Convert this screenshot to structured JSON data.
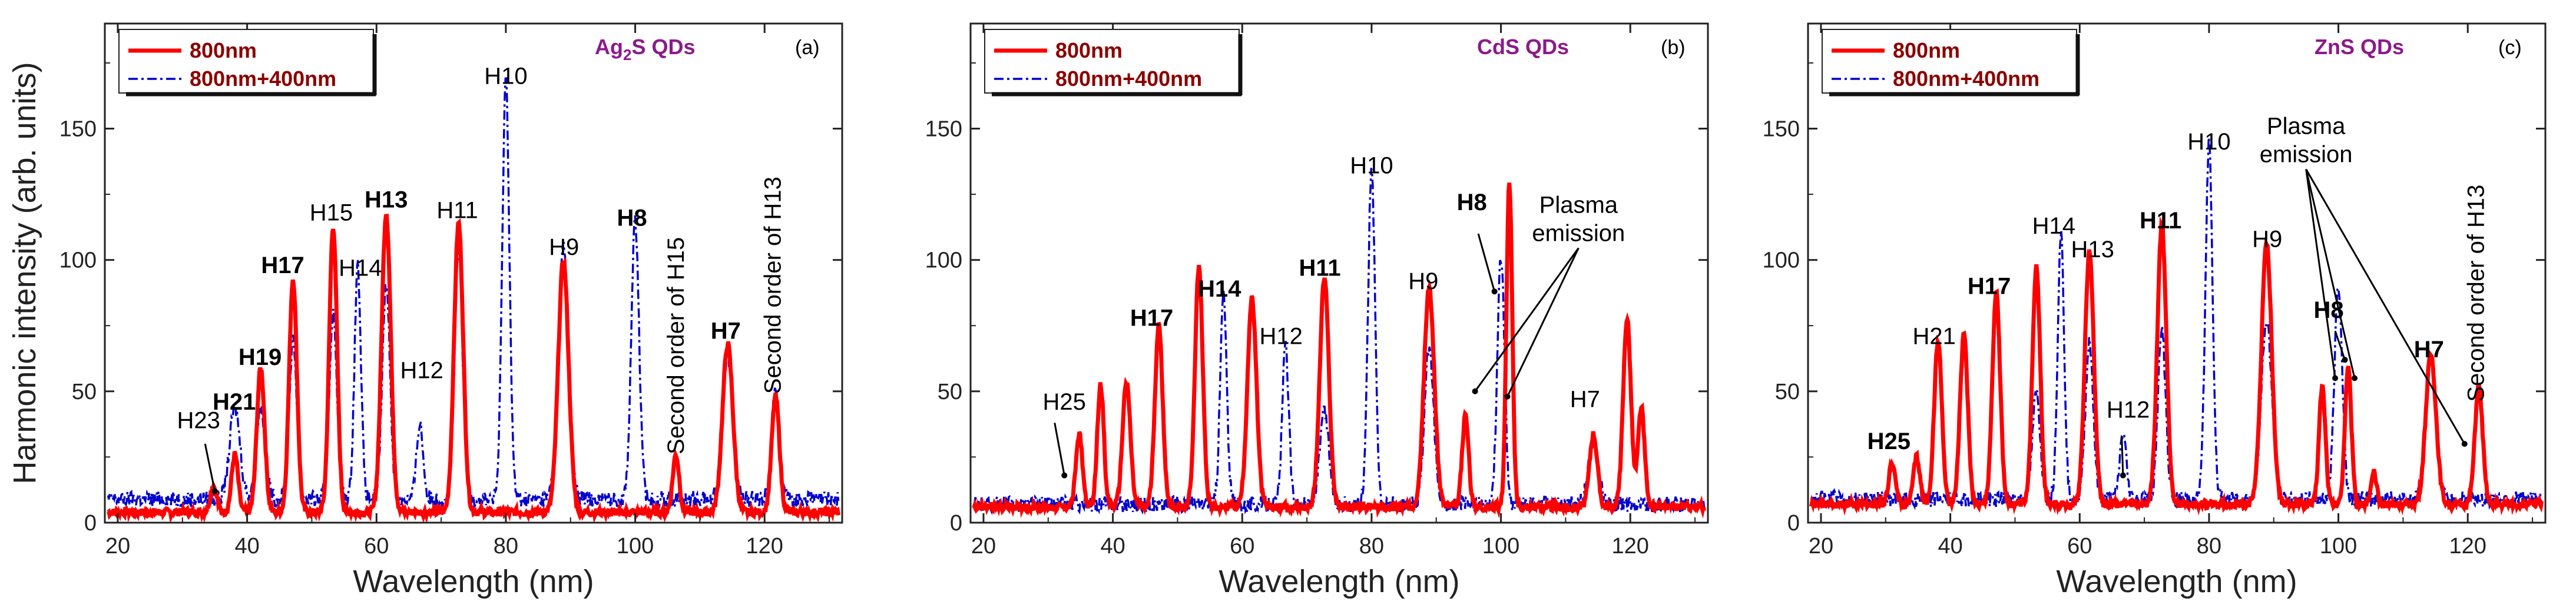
{
  "chart_data": [
    {
      "type": "line",
      "panel_tag": "(a)",
      "title": "Ag2S QDs",
      "title_main": "Ag",
      "title_sub": "2",
      "title_rest": "S QDs",
      "xlabel": "Wavelength (nm)",
      "ylabel": "Harmonic intensity (arb. units)",
      "xlim": [
        18,
        132
      ],
      "ylim": [
        0,
        190
      ],
      "xticks": [
        20,
        40,
        60,
        80,
        100,
        120
      ],
      "yticks": [
        0,
        50,
        100,
        150
      ],
      "legend": [
        "800nm",
        "800nm+400nm"
      ],
      "series": [
        {
          "name": "800nm",
          "color": "#ff0000",
          "baseline": 4,
          "peaks": [
            [
              34.8,
              10,
              0.5
            ],
            [
              38.1,
              22,
              0.5
            ],
            [
              42.1,
              55,
              0.6
            ],
            [
              47.1,
              89,
              0.6
            ],
            [
              53.3,
              109,
              0.6
            ],
            [
              61.5,
              114,
              0.7
            ],
            [
              72.7,
              110,
              0.7
            ],
            [
              88.9,
              96,
              0.8
            ],
            [
              106.3,
              22,
              0.5
            ],
            [
              114.3,
              64,
              0.8
            ],
            [
              121.7,
              44,
              0.6
            ]
          ]
        },
        {
          "name": "800nm+400nm",
          "color": "#0000cc",
          "baseline": 9,
          "peaks": [
            [
              38.1,
              35,
              0.8
            ],
            [
              42.1,
              35,
              0.7
            ],
            [
              47.1,
              60,
              0.6
            ],
            [
              53.3,
              70,
              0.6
            ],
            [
              57.1,
              89,
              0.5
            ],
            [
              61.5,
              82,
              0.6
            ],
            [
              66.7,
              29,
              0.5
            ],
            [
              72.7,
              95,
              0.6
            ],
            [
              80.0,
              160,
              0.55
            ],
            [
              88.9,
              96,
              0.8
            ],
            [
              100.0,
              106,
              0.6
            ],
            [
              114.3,
              55,
              0.8
            ],
            [
              121.7,
              42,
              0.6
            ]
          ]
        }
      ],
      "annotations": [
        {
          "text": "H23",
          "x": 32.5,
          "y": 36,
          "bold": false
        },
        {
          "text": "H21",
          "x": 38.0,
          "y": 43,
          "bold": true
        },
        {
          "text": "H19",
          "x": 42.0,
          "y": 60,
          "bold": true
        },
        {
          "text": "H17",
          "x": 45.5,
          "y": 95,
          "bold": true
        },
        {
          "text": "H15",
          "x": 53.0,
          "y": 115,
          "bold": false
        },
        {
          "text": "H14",
          "x": 57.5,
          "y": 94,
          "bold": false
        },
        {
          "text": "H13",
          "x": 61.5,
          "y": 120,
          "bold": true
        },
        {
          "text": "H12",
          "x": 67.0,
          "y": 55,
          "bold": false
        },
        {
          "text": "H11",
          "x": 72.5,
          "y": 116,
          "bold": false
        },
        {
          "text": "H10",
          "x": 80.0,
          "y": 167,
          "bold": false
        },
        {
          "text": "H9",
          "x": 89.0,
          "y": 102,
          "bold": false
        },
        {
          "text": "H8",
          "x": 99.5,
          "y": 113,
          "bold": true
        },
        {
          "text": "H7",
          "x": 114.0,
          "y": 70,
          "bold": true
        }
      ],
      "rotated_annotations": [
        "Second order of H15",
        "Second order of H13"
      ]
    },
    {
      "type": "line",
      "panel_tag": "(b)",
      "title": "CdS QDs",
      "xlabel": "Wavelength (nm)",
      "ylabel": "",
      "xlim": [
        18,
        132
      ],
      "ylim": [
        0,
        190
      ],
      "xticks": [
        20,
        40,
        60,
        80,
        100,
        120
      ],
      "yticks": [
        0,
        50,
        100,
        150
      ],
      "legend": [
        "800nm",
        "800nm+400nm"
      ],
      "series": [
        {
          "name": "800nm",
          "color": "#ff0000",
          "baseline": 6,
          "peaks": [
            [
              34.8,
              28,
              0.5
            ],
            [
              38.1,
              47,
              0.5
            ],
            [
              42.1,
              48,
              0.6
            ],
            [
              47.1,
              69,
              0.6
            ],
            [
              53.3,
              91,
              0.6
            ],
            [
              61.5,
              79,
              0.7
            ],
            [
              72.7,
              87,
              0.7
            ],
            [
              88.9,
              83,
              0.8
            ],
            [
              94.5,
              35,
              0.5
            ],
            [
              101.3,
              123,
              0.45
            ],
            [
              114.3,
              28,
              0.6
            ],
            [
              119.5,
              72,
              0.6
            ],
            [
              121.7,
              38,
              0.5
            ]
          ]
        },
        {
          "name": "800nm+400nm",
          "color": "#0000cc",
          "baseline": 7,
          "peaks": [
            [
              57.1,
              80,
              0.5
            ],
            [
              66.7,
              60,
              0.5
            ],
            [
              72.7,
              35,
              0.7
            ],
            [
              80.0,
              127,
              0.55
            ],
            [
              88.9,
              60,
              0.7
            ],
            [
              100.0,
              95,
              0.55
            ],
            [
              114.3,
              22,
              0.8
            ]
          ]
        }
      ],
      "annotations": [
        {
          "text": "H25",
          "x": 32.5,
          "y": 43,
          "bold": false
        },
        {
          "text": "H17",
          "x": 46.0,
          "y": 75,
          "bold": true
        },
        {
          "text": "H14",
          "x": 56.5,
          "y": 86,
          "bold": true
        },
        {
          "text": "H12",
          "x": 66.0,
          "y": 68,
          "bold": false
        },
        {
          "text": "H11",
          "x": 72.0,
          "y": 94,
          "bold": true
        },
        {
          "text": "H10",
          "x": 80.0,
          "y": 133,
          "bold": false
        },
        {
          "text": "H9",
          "x": 88.0,
          "y": 89,
          "bold": false
        },
        {
          "text": "H8",
          "x": 95.5,
          "y": 119,
          "bold": true
        },
        {
          "text": "H7",
          "x": 113.0,
          "y": 44,
          "bold": false
        }
      ],
      "plasma_label": [
        "Plasma",
        "emission"
      ]
    },
    {
      "type": "line",
      "panel_tag": "(c)",
      "title": "ZnS QDs",
      "xlabel": "Wavelength (nm)",
      "ylabel": "",
      "xlim": [
        18,
        132
      ],
      "ylim": [
        0,
        190
      ],
      "xticks": [
        20,
        40,
        60,
        80,
        100,
        120
      ],
      "yticks": [
        0,
        50,
        100,
        150
      ],
      "legend": [
        "800nm",
        "800nm+400nm"
      ],
      "series": [
        {
          "name": "800nm",
          "color": "#ff0000",
          "baseline": 7,
          "peaks": [
            [
              31.0,
              16,
              0.5
            ],
            [
              34.8,
              18,
              0.5
            ],
            [
              38.1,
              62,
              0.6
            ],
            [
              42.1,
              64,
              0.6
            ],
            [
              47.1,
              81,
              0.6
            ],
            [
              53.3,
              91,
              0.6
            ],
            [
              61.5,
              96,
              0.7
            ],
            [
              72.7,
              106,
              0.7
            ],
            [
              88.9,
              99,
              0.8
            ],
            [
              97.5,
              45,
              0.5
            ],
            [
              101.5,
              52,
              0.5
            ],
            [
              105.5,
              12,
              0.4
            ],
            [
              114.3,
              57,
              0.8
            ],
            [
              121.7,
              45,
              0.6
            ]
          ]
        },
        {
          "name": "800nm+400nm",
          "color": "#0000cc",
          "baseline": 9,
          "peaks": [
            [
              53.3,
              40,
              0.6
            ],
            [
              57.1,
              101,
              0.5
            ],
            [
              61.5,
              60,
              0.6
            ],
            [
              66.7,
              25,
              0.5
            ],
            [
              72.7,
              64,
              0.6
            ],
            [
              80.0,
              136,
              0.55
            ],
            [
              88.9,
              68,
              0.8
            ],
            [
              100.0,
              82,
              0.6
            ],
            [
              114.3,
              55,
              0.8
            ]
          ]
        }
      ],
      "annotations": [
        {
          "text": "H25",
          "x": 30.5,
          "y": 28,
          "bold": true
        },
        {
          "text": "H21",
          "x": 37.5,
          "y": 68,
          "bold": false
        },
        {
          "text": "H17",
          "x": 46.0,
          "y": 87,
          "bold": true
        },
        {
          "text": "H14",
          "x": 56.0,
          "y": 110,
          "bold": false
        },
        {
          "text": "H13",
          "x": 62.0,
          "y": 101,
          "bold": false
        },
        {
          "text": "H12",
          "x": 67.5,
          "y": 40,
          "bold": false
        },
        {
          "text": "H11",
          "x": 72.5,
          "y": 112,
          "bold": true
        },
        {
          "text": "H10",
          "x": 80.0,
          "y": 142,
          "bold": false
        },
        {
          "text": "H9",
          "x": 89.0,
          "y": 105,
          "bold": false
        },
        {
          "text": "H8",
          "x": 98.5,
          "y": 78,
          "bold": true
        },
        {
          "text": "H7",
          "x": 114.0,
          "y": 63,
          "bold": true
        }
      ],
      "plasma_label": [
        "Plasma",
        "emission"
      ],
      "rotated_annotations": [
        "Second order of H13"
      ]
    }
  ]
}
